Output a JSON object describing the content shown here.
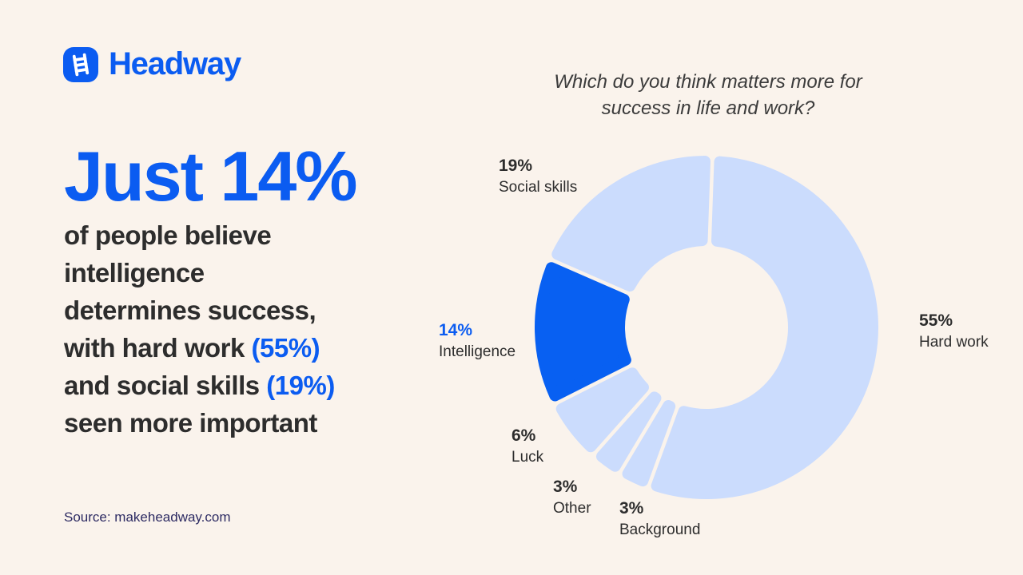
{
  "brand": {
    "name": "Headway",
    "logo_icon": "ladder-icon"
  },
  "colors": {
    "background": "#FAF3EC",
    "brand_blue": "#0B5CF1",
    "dark_text": "#2D2D2D",
    "source_text": "#2D2B63",
    "chart_light_blue": "#CBDCFD",
    "chart_emphasis_blue": "#0860F2"
  },
  "headline": {
    "big": "Just 14%",
    "line1": "of people believe",
    "line2": "intelligence",
    "line3": "determines success,",
    "line4a": "with hard work ",
    "line4b": "(55%)",
    "line5a": "and social skills ",
    "line5b": "(19%)",
    "line6": "seen more important"
  },
  "source": "Source: makeheadway.com",
  "chart_data": {
    "type": "pie",
    "subtype": "donut",
    "title": "Which do you think matters more for success in life and work?",
    "title_line1": "Which do you think matters more for",
    "title_line2": "success in life and work?",
    "start_angle_deg": 2,
    "slices": [
      {
        "label": "Hard work",
        "value": 55,
        "pct": "55%",
        "emphasis": false
      },
      {
        "label": "Background",
        "value": 3,
        "pct": "3%",
        "emphasis": false
      },
      {
        "label": "Other",
        "value": 3,
        "pct": "3%",
        "emphasis": false
      },
      {
        "label": "Luck",
        "value": 6,
        "pct": "6%",
        "emphasis": false
      },
      {
        "label": "Intelligence",
        "value": 14,
        "pct": "14%",
        "emphasis": true
      },
      {
        "label": "Social skills",
        "value": 19,
        "pct": "19%",
        "emphasis": false
      }
    ],
    "colors": {
      "base": "#CBDCFD",
      "emphasis": "#0860F2"
    },
    "legend_position": "labels-around-donut",
    "donut": {
      "outer_radius": 215,
      "inner_radius": 102,
      "gap": 4.5,
      "corner_radius": 7
    }
  }
}
